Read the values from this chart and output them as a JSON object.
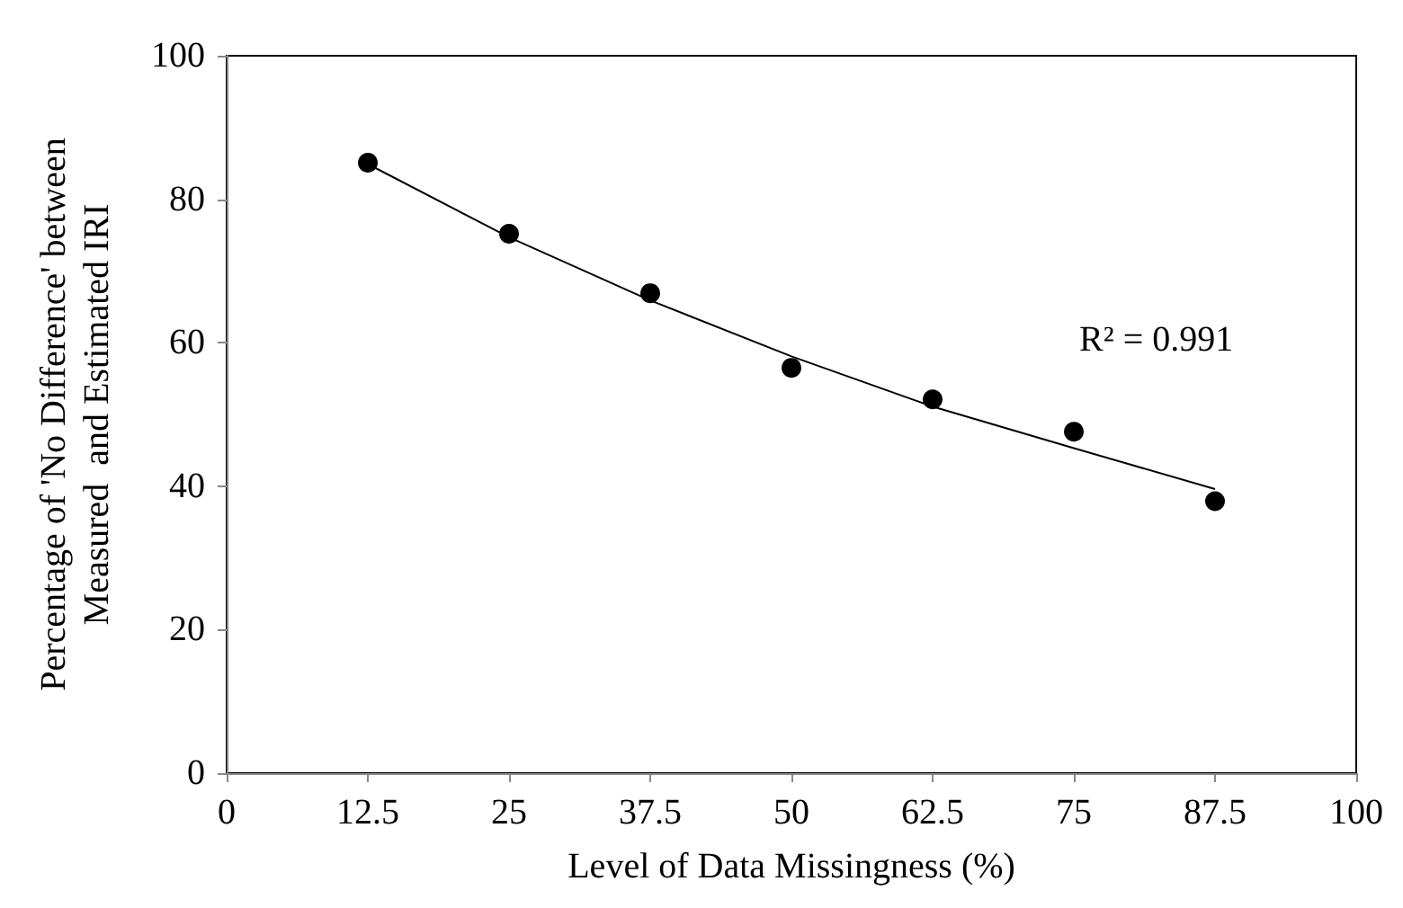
{
  "chart_data": {
    "type": "scatter",
    "xlabel": "Level of Data Missingness (%)",
    "ylabel": "Percentage of 'No Difference' between\nMeasured  and Estimated IRI",
    "x": [
      12.5,
      25,
      37.5,
      50,
      62.5,
      75,
      87.5
    ],
    "series": [
      {
        "color": "#000000",
        "marker": "circle",
        "values": [
          85.1,
          75.2,
          66.9,
          56.5,
          52.1,
          47.6,
          37.9
        ]
      },
      {
        "type": "line",
        "color": "#000000",
        "marker": "none",
        "values": [
          84.9,
          74.7,
          65.9,
          58.1,
          51.1,
          45.3,
          39.6
        ]
      }
    ],
    "annotations": [
      "R² = 0.991"
    ],
    "xlim": [
      0,
      100
    ],
    "xticks": [
      0,
      12.5,
      25,
      37.5,
      50,
      62.5,
      75,
      87.5,
      100
    ],
    "ylim": [
      0,
      100
    ],
    "yticks": [
      0,
      20,
      40,
      60,
      80,
      100
    ],
    "grid": false
  }
}
